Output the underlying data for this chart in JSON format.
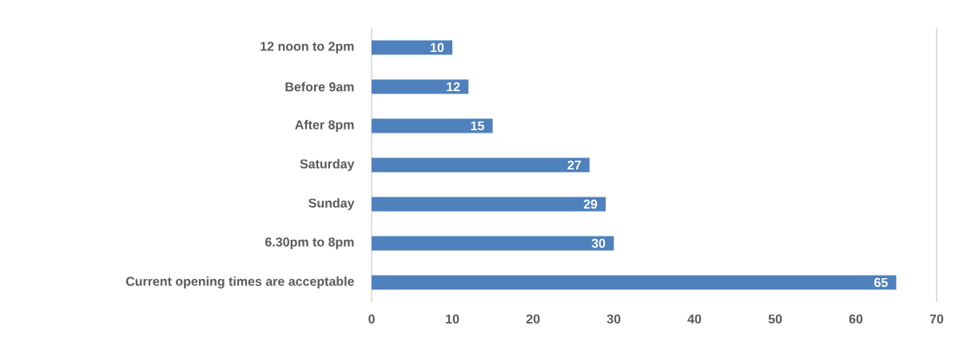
{
  "chart_data": {
    "type": "bar",
    "orientation": "horizontal",
    "categories": [
      "12 noon to 2pm",
      "Before 9am",
      "After 8pm",
      "Saturday",
      "Sunday",
      "6.30pm to 8pm",
      "Current opening times are acceptable"
    ],
    "values": [
      10,
      12,
      15,
      27,
      29,
      30,
      65
    ],
    "color": "#4f81bd",
    "data_labels": true,
    "xlim": [
      0,
      70
    ],
    "xticks": [
      0,
      10,
      20,
      30,
      40,
      50,
      60,
      70
    ]
  }
}
